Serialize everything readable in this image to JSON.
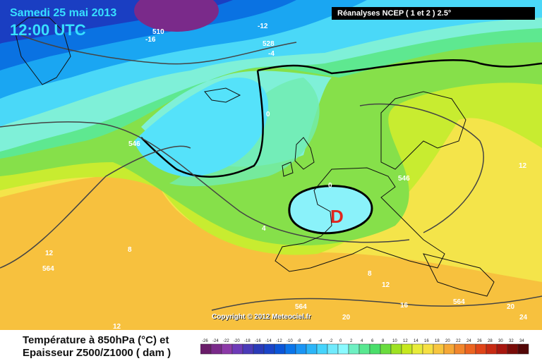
{
  "header": {
    "date": "Samedi 25 mai 2013",
    "time": "12:00 UTC",
    "source": "Réanalyses NCEP ( 1 et 2 ) 2.5°"
  },
  "map": {
    "low_marker": "D",
    "low_color": "#e0261e",
    "temp_labels": [
      "-16",
      "-12",
      "-4",
      "0",
      "0",
      "4",
      "8",
      "8",
      "12",
      "12",
      "12",
      "16",
      "20",
      "20",
      "24",
      "12"
    ],
    "thickness_labels": [
      "510",
      "528",
      "546",
      "546",
      "564",
      "564",
      "564"
    ],
    "copyright": "Copyright © 2012 Meteociel.fr"
  },
  "footer": {
    "title_line1": "Température à 850hPa (°C) et",
    "title_line2": "Epaisseur Z500/Z1000 ( dam )"
  },
  "legend": {
    "values": [
      "-26",
      "-24",
      "-22",
      "-20",
      "-18",
      "-16",
      "-14",
      "-12",
      "-10",
      "-8",
      "-6",
      "-4",
      "-2",
      "0",
      "2",
      "4",
      "6",
      "8",
      "10",
      "12",
      "14",
      "16",
      "18",
      "20",
      "22",
      "24",
      "26",
      "28",
      "30",
      "32",
      "34"
    ],
    "colors": [
      "#6a1d6a",
      "#7a2a8a",
      "#8c3aa8",
      "#6e3ab8",
      "#4a3ab8",
      "#2a3ab8",
      "#1a44c8",
      "#0a55d8",
      "#0a75ea",
      "#1a95f4",
      "#2bb5f8",
      "#45d4fc",
      "#70eafc",
      "#8afaff",
      "#6ef0c2",
      "#58e890",
      "#4ade6a",
      "#6adc3e",
      "#9ee222",
      "#c6e81e",
      "#e8ec3a",
      "#f6e042",
      "#f8c63e",
      "#f6a836",
      "#f2862c",
      "#ec6420",
      "#e04418",
      "#c82a12",
      "#a8160e",
      "#7a0c08",
      "#520606"
    ]
  }
}
